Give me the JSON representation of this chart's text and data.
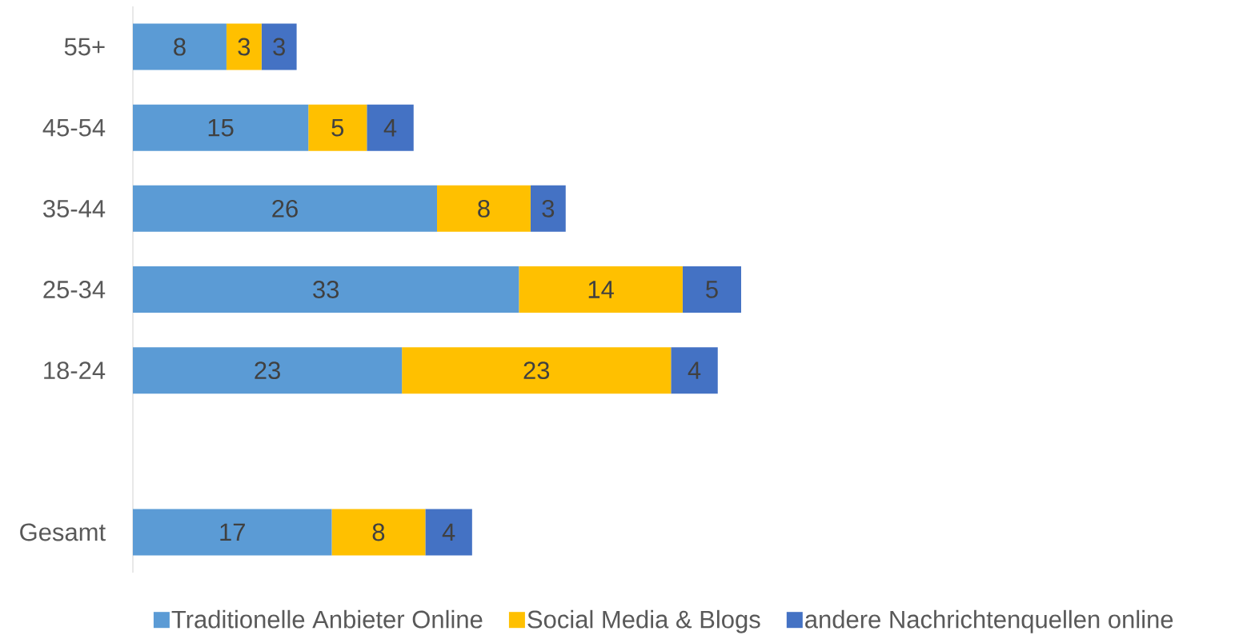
{
  "chart_data": {
    "type": "bar",
    "orientation": "horizontal",
    "stacked": true,
    "data_labels": true,
    "legend": "bottom",
    "categories": [
      "55+",
      "45-54",
      "35-44",
      "25-34",
      "18-24",
      null,
      "Gesamt"
    ],
    "series": [
      {
        "name": "Traditionelle Anbieter Online",
        "color": "#5b9bd5",
        "values": [
          8,
          15,
          26,
          33,
          23,
          null,
          17
        ]
      },
      {
        "name": "Social Media & Blogs",
        "color": "#ffc000",
        "values": [
          3,
          5,
          8,
          14,
          23,
          null,
          8
        ]
      },
      {
        "name": "andere Nachrichtenquellen online",
        "color": "#4472c4",
        "values": [
          3,
          4,
          3,
          5,
          4,
          null,
          4
        ]
      }
    ]
  }
}
